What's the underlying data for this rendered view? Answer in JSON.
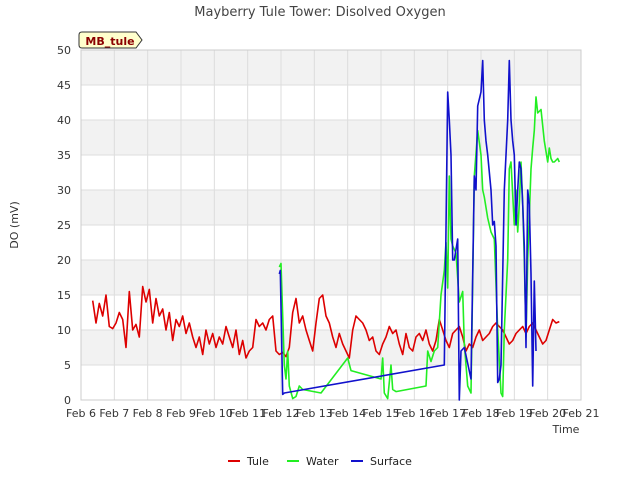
{
  "chart_data": {
    "type": "line",
    "title": "Mayberry Tule Tower: Disolved Oxygen",
    "tag": "MB_tule",
    "xlabel": "Time",
    "ylabel": "DO (mV)",
    "xlim": [
      6,
      21
    ],
    "ylim": [
      0,
      50
    ],
    "xticks": [
      6,
      7,
      8,
      9,
      10,
      11,
      12,
      13,
      14,
      15,
      16,
      17,
      18,
      19,
      20,
      21
    ],
    "xtick_labels": [
      "Feb 6",
      "Feb 7",
      "Feb 8",
      "Feb 9",
      "Feb 10",
      "Feb 11",
      "Feb 12",
      "Feb 13",
      "Feb 14",
      "Feb 15",
      "Feb 16",
      "Feb 17",
      "Feb 18",
      "Feb 19",
      "Feb 20",
      "Feb 21"
    ],
    "yticks": [
      0,
      5,
      10,
      15,
      20,
      25,
      30,
      35,
      40,
      45,
      50
    ],
    "grid": true,
    "legend_position": "bottom-center",
    "series": [
      {
        "name": "Tule",
        "color": "#dd0000",
        "x": [
          6.35,
          6.45,
          6.55,
          6.65,
          6.75,
          6.85,
          6.95,
          7.05,
          7.15,
          7.25,
          7.35,
          7.45,
          7.55,
          7.65,
          7.75,
          7.85,
          7.95,
          8.05,
          8.15,
          8.25,
          8.35,
          8.45,
          8.55,
          8.65,
          8.75,
          8.85,
          8.95,
          9.05,
          9.15,
          9.25,
          9.35,
          9.45,
          9.55,
          9.65,
          9.75,
          9.85,
          9.95,
          10.05,
          10.15,
          10.25,
          10.35,
          10.45,
          10.55,
          10.65,
          10.75,
          10.85,
          10.95,
          11.05,
          11.15,
          11.25,
          11.35,
          11.45,
          11.55,
          11.65,
          11.75,
          11.85,
          11.95,
          12.05,
          12.15,
          12.25,
          12.35,
          12.45,
          12.55,
          12.65,
          12.75,
          12.85,
          12.95,
          13.05,
          13.15,
          13.25,
          13.35,
          13.45,
          13.55,
          13.65,
          13.75,
          13.85,
          13.95,
          14.05,
          14.15,
          14.25,
          14.35,
          14.45,
          14.55,
          14.65,
          14.75,
          14.85,
          14.95,
          15.05,
          15.15,
          15.25,
          15.35,
          15.45,
          15.55,
          15.65,
          15.75,
          15.85,
          15.95,
          16.05,
          16.15,
          16.25,
          16.35,
          16.45,
          16.55,
          16.65,
          16.75,
          16.85,
          16.95,
          17.05,
          17.15,
          17.25,
          17.35,
          17.45,
          17.55,
          17.65,
          17.75,
          17.85,
          17.95,
          18.05,
          18.15,
          18.25,
          18.35,
          18.45,
          18.55,
          18.65,
          18.75,
          18.85,
          18.95,
          19.05,
          19.15,
          19.25,
          19.35,
          19.45,
          19.55,
          19.65,
          19.75,
          19.85,
          19.95,
          20.05,
          20.15,
          20.25,
          20.35
        ],
        "y": [
          14.2,
          11.0,
          13.8,
          12.0,
          15.0,
          10.5,
          10.2,
          11.0,
          12.5,
          11.5,
          7.5,
          15.5,
          10.0,
          10.8,
          9.0,
          16.2,
          14.0,
          15.8,
          11.0,
          14.5,
          12.0,
          13.0,
          10.0,
          12.5,
          8.5,
          11.5,
          10.5,
          12.0,
          9.5,
          11.0,
          9.0,
          7.5,
          9.0,
          6.5,
          10.0,
          8.0,
          9.5,
          7.5,
          9.0,
          8.0,
          10.5,
          9.0,
          7.5,
          10.0,
          6.5,
          8.5,
          6.0,
          7.0,
          7.5,
          11.5,
          10.5,
          11.0,
          10.0,
          11.5,
          12.0,
          7.0,
          6.5,
          6.8,
          6.2,
          7.5,
          12.5,
          14.5,
          11.0,
          12.0,
          10.0,
          8.5,
          7.0,
          11.0,
          14.5,
          15.0,
          12.0,
          11.0,
          9.0,
          7.5,
          9.5,
          8.0,
          7.0,
          6.0,
          10.0,
          12.0,
          11.5,
          11.0,
          10.0,
          8.5,
          9.0,
          7.0,
          6.5,
          8.0,
          9.0,
          10.5,
          9.5,
          10.0,
          8.0,
          6.5,
          9.5,
          7.5,
          7.0,
          9.0,
          9.5,
          8.5,
          10.0,
          8.0,
          7.0,
          8.5,
          11.5,
          10.0,
          8.5,
          7.5,
          9.5,
          10.0,
          10.5,
          9.0,
          7.0,
          8.0,
          7.5,
          9.0,
          10.0,
          8.5,
          9.0,
          9.5,
          10.5,
          11.0,
          10.5,
          10.0,
          9.0,
          8.0,
          8.5,
          9.5,
          10.0,
          10.5,
          9.5,
          10.5,
          11.0,
          10.0,
          9.0,
          8.0,
          8.5,
          10.0,
          11.5,
          11.0,
          11.2
        ]
      },
      {
        "name": "Water",
        "color": "#22ee22",
        "x": [
          11.95,
          12.0,
          12.05,
          12.1,
          12.15,
          12.2,
          12.25,
          12.35,
          12.45,
          12.55,
          12.65,
          13.2,
          14.0,
          14.1,
          15.0,
          15.05,
          15.1,
          15.2,
          15.3,
          15.35,
          15.45,
          16.35,
          16.4,
          16.5,
          16.6,
          16.7,
          16.8,
          16.9,
          16.95,
          17.0,
          17.05,
          17.1,
          17.15,
          17.25,
          17.35,
          17.45,
          17.5,
          17.6,
          17.7,
          17.8,
          17.9,
          18.0,
          18.05,
          18.1,
          18.2,
          18.3,
          18.4,
          18.5,
          18.6,
          18.65,
          18.7,
          18.8,
          18.85,
          18.9,
          19.0,
          19.05,
          19.1,
          19.15,
          19.2,
          19.25,
          19.3,
          19.35,
          19.4,
          19.5,
          19.55,
          19.6,
          19.65,
          19.7,
          19.8,
          19.9,
          20.0,
          20.05,
          20.1,
          20.15,
          20.2,
          20.3,
          20.35
        ],
        "y": [
          19.0,
          19.5,
          12.0,
          5.0,
          3.0,
          7.0,
          2.0,
          0.2,
          0.5,
          2.0,
          1.5,
          1.0,
          6.0,
          4.2,
          3.0,
          6.0,
          1.0,
          0.2,
          5.0,
          1.5,
          1.2,
          2.0,
          7.0,
          5.5,
          7.0,
          7.5,
          15.0,
          18.5,
          22.5,
          16.0,
          32.0,
          23.0,
          22.0,
          21.0,
          14.0,
          15.5,
          8.0,
          2.0,
          1.0,
          32.0,
          38.5,
          35.0,
          30.0,
          29.0,
          26.0,
          24.0,
          23.0,
          10.0,
          1.0,
          0.5,
          10.0,
          20.0,
          33.0,
          34.0,
          25.0,
          30.0,
          24.0,
          28.0,
          34.0,
          28.0,
          20.0,
          9.0,
          20.0,
          33.0,
          36.0,
          38.5,
          43.3,
          41.0,
          41.5,
          37.0,
          34.0,
          36.0,
          34.5,
          34.0,
          34.0,
          34.5,
          34.0
        ],
        "estimated": true
      },
      {
        "name": "Surface",
        "color": "#1111cc",
        "x": [
          11.95,
          11.98,
          12.05,
          12.1,
          16.9,
          17.0,
          17.05,
          17.1,
          17.15,
          17.2,
          17.3,
          17.35,
          17.4,
          17.5,
          17.7,
          17.8,
          17.85,
          17.9,
          18.0,
          18.05,
          18.1,
          18.15,
          18.2,
          18.3,
          18.35,
          18.4,
          18.45,
          18.5,
          18.55,
          18.6,
          18.7,
          18.8,
          18.85,
          18.9,
          18.95,
          19.0,
          19.05,
          19.1,
          19.15,
          19.2,
          19.25,
          19.3,
          19.35,
          19.4,
          19.45,
          19.5,
          19.55,
          19.6,
          19.65
        ],
        "y": [
          18.0,
          18.5,
          0.8,
          1.0,
          5.0,
          44.0,
          40.0,
          35.0,
          20.0,
          20.0,
          23.0,
          0.0,
          7.0,
          7.5,
          3.0,
          32.0,
          30.0,
          42.0,
          44.0,
          48.5,
          40.0,
          37.0,
          35.0,
          30.0,
          25.0,
          25.5,
          22.0,
          2.5,
          3.0,
          5.0,
          30.0,
          40.0,
          48.5,
          40.0,
          37.0,
          35.0,
          25.0,
          30.0,
          34.0,
          33.0,
          28.0,
          22.0,
          7.5,
          30.0,
          28.0,
          18.0,
          2.0,
          17.0,
          7.0
        ],
        "estimated": true
      }
    ]
  }
}
